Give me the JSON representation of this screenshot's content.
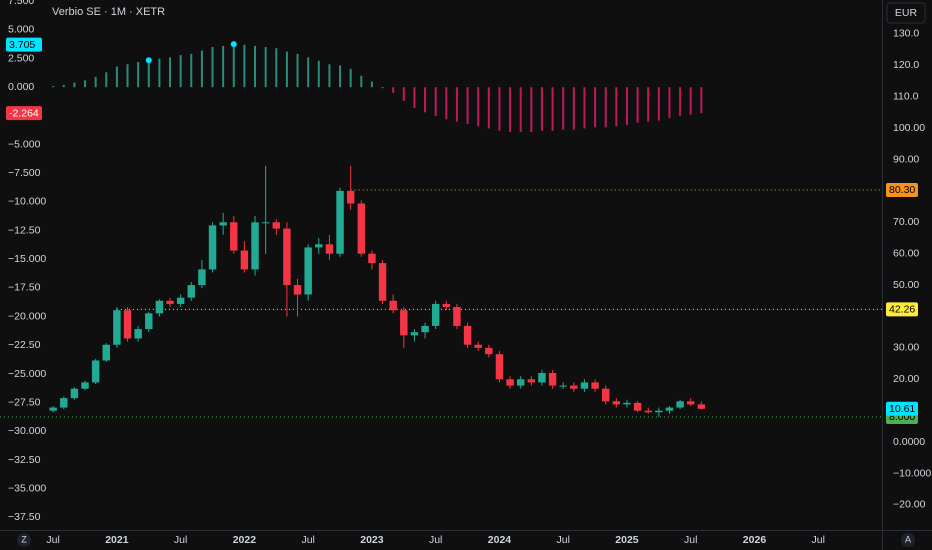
{
  "chart_data": {
    "type": "candlestick",
    "title": "Verbio SE · 1M · XETR",
    "currency": "EUR",
    "corner_labels": [
      "Z",
      "A"
    ],
    "up_color": "#22ab94",
    "down_color": "#f23645",
    "x": [
      "2020-07",
      "2020-08",
      "2020-09",
      "2020-10",
      "2020-11",
      "2020-12",
      "2021-01",
      "2021-02",
      "2021-03",
      "2021-04",
      "2021-05",
      "2021-06",
      "2021-07",
      "2021-08",
      "2021-09",
      "2021-10",
      "2021-11",
      "2021-12",
      "2022-01",
      "2022-02",
      "2022-03",
      "2022-04",
      "2022-05",
      "2022-06",
      "2022-07",
      "2022-08",
      "2022-09",
      "2022-10",
      "2022-11",
      "2022-12",
      "2023-01",
      "2023-02",
      "2023-03",
      "2023-04",
      "2023-05",
      "2023-06",
      "2023-07",
      "2023-08",
      "2023-09",
      "2023-10",
      "2023-11",
      "2023-12",
      "2024-01",
      "2024-02",
      "2024-03",
      "2024-04",
      "2024-05",
      "2024-06",
      "2024-07",
      "2024-08",
      "2024-09",
      "2024-10",
      "2024-11",
      "2024-12",
      "2025-01",
      "2025-02",
      "2025-03",
      "2025-04",
      "2025-05",
      "2025-06",
      "2025-07",
      "2025-08"
    ],
    "open": [
      10,
      11,
      14,
      17,
      19,
      26,
      31,
      42,
      33,
      36,
      41,
      45,
      44,
      46,
      50,
      55,
      69,
      70,
      61,
      55,
      70,
      70,
      68,
      50,
      47,
      62,
      63,
      60,
      80,
      76,
      60,
      57,
      45,
      42,
      34,
      35,
      37,
      44,
      43,
      37,
      31,
      30,
      28,
      20,
      18,
      20,
      19,
      22,
      18,
      18,
      17,
      19,
      17,
      13,
      12,
      12.5,
      10,
      9.5,
      10,
      11,
      13,
      12
    ],
    "high": [
      11.5,
      14.5,
      17.5,
      19.5,
      26.5,
      31.5,
      43,
      43,
      37,
      41.5,
      45.5,
      46,
      47,
      51,
      58,
      70,
      73,
      72,
      64,
      72,
      88,
      71,
      70,
      52,
      63,
      65,
      66,
      81,
      88,
      77,
      61,
      58,
      47,
      43,
      36,
      38,
      45,
      45,
      44,
      38,
      32,
      31,
      29,
      21,
      21,
      21,
      23,
      23,
      19,
      19,
      20,
      20,
      18,
      14,
      13.5,
      13,
      11,
      11,
      11.5,
      13.5,
      14,
      13
    ],
    "low": [
      9.5,
      10.5,
      13.5,
      16.5,
      18.5,
      25.5,
      30,
      32,
      32,
      35,
      40,
      43,
      43,
      45,
      49,
      54,
      66,
      60,
      54,
      53,
      60,
      66,
      40,
      40,
      45,
      60,
      58,
      59,
      74,
      59,
      55,
      44,
      41,
      30,
      32,
      33,
      36,
      42,
      36,
      30,
      29,
      27,
      19,
      17,
      17,
      18,
      18,
      17,
      17,
      16,
      16,
      16,
      12,
      11,
      11,
      9.5,
      9,
      8,
      9,
      10.5,
      11.5,
      10.3
    ],
    "close": [
      11,
      14,
      17,
      19,
      26,
      31,
      42,
      33,
      36,
      41,
      45,
      44,
      46,
      50,
      55,
      69,
      70,
      61,
      55,
      70,
      70,
      68,
      50,
      47,
      62,
      63,
      60,
      80,
      76,
      60,
      57,
      45,
      42,
      34,
      35,
      37,
      44,
      43,
      37,
      31,
      30,
      28,
      20,
      18,
      20,
      19,
      22,
      18,
      18,
      17,
      19,
      17,
      13,
      12,
      12.5,
      10,
      9.5,
      10,
      11,
      13,
      12,
      10.61
    ],
    "xlim": [
      "2020-02",
      "2027-01"
    ],
    "xticks": [
      {
        "value": "2020-07",
        "label": "Jul"
      },
      {
        "value": "2021-01",
        "label": "2021"
      },
      {
        "value": "2021-07",
        "label": "Jul"
      },
      {
        "value": "2022-01",
        "label": "2022"
      },
      {
        "value": "2022-07",
        "label": "Jul"
      },
      {
        "value": "2023-01",
        "label": "2023"
      },
      {
        "value": "2023-07",
        "label": "Jul"
      },
      {
        "value": "2024-01",
        "label": "2024"
      },
      {
        "value": "2024-07",
        "label": "Jul"
      },
      {
        "value": "2025-01",
        "label": "2025"
      },
      {
        "value": "2025-07",
        "label": "Jul"
      },
      {
        "value": "2026-01",
        "label": "2026"
      },
      {
        "value": "2026-07",
        "label": "Jul"
      }
    ],
    "y2lim": [
      -28,
      140.8
    ],
    "y2ticks": [
      {
        "value": 130,
        "label": "130.0"
      },
      {
        "value": 120,
        "label": "120.0"
      },
      {
        "value": 110,
        "label": "110.0"
      },
      {
        "value": 100,
        "label": "100.00"
      },
      {
        "value": 90,
        "label": "90.00"
      },
      {
        "value": 70,
        "label": "70.00"
      },
      {
        "value": 60,
        "label": "60.00"
      },
      {
        "value": 50,
        "label": "50.00"
      },
      {
        "value": 30,
        "label": "30.00"
      },
      {
        "value": 20,
        "label": "20.00"
      },
      {
        "value": 0,
        "label": "0.0000"
      },
      {
        "value": -10,
        "label": "−10.000"
      },
      {
        "value": -20,
        "label": "−20.00"
      }
    ],
    "price_levels": [
      {
        "value": 80.3,
        "label": "80.30",
        "color": "#f7931a",
        "start": "2022-11"
      },
      {
        "value": 42.26,
        "label": "42.26",
        "color": "#ffeb3b",
        "start": "2021-01"
      },
      {
        "value": 8,
        "label": "8.000",
        "color": "#4caf50",
        "start": "2020-02"
      }
    ],
    "last_price": {
      "value": 10.61,
      "label": "10.61",
      "color": "#00e5ff"
    },
    "oscillator": {
      "type": "histogram",
      "pos_color": "#2a8c7b",
      "neg_color": "#c2185b",
      "marker_color": "#00e5ff",
      "values": [
        0.1,
        0.2,
        0.4,
        0.6,
        0.9,
        1.3,
        1.8,
        2.0,
        2.2,
        2.35,
        2.5,
        2.6,
        2.8,
        2.9,
        3.2,
        3.5,
        3.6,
        3.75,
        3.7,
        3.6,
        3.5,
        3.4,
        3.1,
        2.9,
        2.6,
        2.3,
        2.0,
        1.9,
        1.6,
        1.0,
        0.5,
        0.0,
        -0.5,
        -1.2,
        -1.8,
        -2.2,
        -2.5,
        -2.8,
        -3.0,
        -3.2,
        -3.4,
        -3.6,
        -3.8,
        -3.9,
        -3.9,
        -3.9,
        -3.8,
        -3.8,
        -3.7,
        -3.7,
        -3.6,
        -3.5,
        -3.5,
        -3.4,
        -3.3,
        -3.1,
        -3.0,
        -2.9,
        -2.7,
        -2.5,
        -2.4,
        -2.264
      ],
      "markers": [
        9,
        17
      ],
      "ylim": [
        -38.6,
        7.6
      ],
      "yticks": [
        {
          "value": 7.5,
          "label": "7.500"
        },
        {
          "value": 5,
          "label": "5.000"
        },
        {
          "value": 2.5,
          "label": "2.500"
        },
        {
          "value": 0,
          "label": "0.000"
        },
        {
          "value": -5,
          "label": "−5.000"
        },
        {
          "value": -7.5,
          "label": "−7.500"
        },
        {
          "value": -10,
          "label": "−10.000"
        },
        {
          "value": -12.5,
          "label": "−12.50"
        },
        {
          "value": -15,
          "label": "−15.000"
        },
        {
          "value": -17.5,
          "label": "−17.50"
        },
        {
          "value": -20,
          "label": "−20.000"
        },
        {
          "value": -22.5,
          "label": "−22.50"
        },
        {
          "value": -25,
          "label": "−25.000"
        },
        {
          "value": -27.5,
          "label": "−27.50"
        },
        {
          "value": -30,
          "label": "−30.000"
        },
        {
          "value": -32.5,
          "label": "−32.50"
        },
        {
          "value": -35,
          "label": "−35.000"
        },
        {
          "value": -37.5,
          "label": "−37.50"
        }
      ],
      "badges": [
        {
          "value": 3.705,
          "color": "#00e5ff"
        },
        {
          "value": -2.264,
          "color": "#f23645"
        }
      ]
    }
  }
}
